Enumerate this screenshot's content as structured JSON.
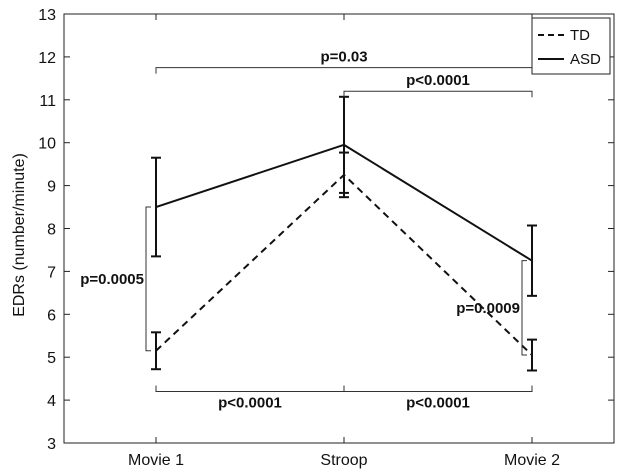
{
  "chart_data": {
    "type": "line",
    "categories": [
      "Movie 1",
      "Stroop",
      "Movie 2"
    ],
    "ylabel": "EDRs (number/minute)",
    "ylim": [
      3,
      13
    ],
    "yticks": [
      3,
      4,
      5,
      6,
      7,
      8,
      9,
      10,
      11,
      12,
      13
    ],
    "grid": false,
    "legend_position": "top-right",
    "series": [
      {
        "name": "TD",
        "style": "dashed",
        "color": "#111111",
        "values": [
          5.15,
          9.25,
          5.05
        ],
        "error": [
          0.43,
          0.52,
          0.36
        ]
      },
      {
        "name": "ASD",
        "style": "solid",
        "color": "#111111",
        "values": [
          8.5,
          9.95,
          7.25
        ],
        "error": [
          1.15,
          1.12,
          0.82
        ]
      }
    ],
    "annotations": [
      {
        "label": "p=0.03",
        "from": "Movie 1",
        "to": "Movie 2",
        "level": 11.75,
        "tick_dir": "down"
      },
      {
        "label": "p<0.0001",
        "from": "Stroop",
        "to": "Movie 2",
        "level": 11.2,
        "tick_dir": "down"
      },
      {
        "label": "p<0.0001",
        "from": "Movie 1",
        "to": "Stroop",
        "level": 4.2,
        "tick_dir": "up"
      },
      {
        "label": "p<0.0001",
        "from": "Stroop",
        "to": "Movie 2",
        "level": 4.2,
        "tick_dir": "up"
      },
      {
        "label": "p=0.0005",
        "at": "Movie 1",
        "from_y": 5.15,
        "to_y": 8.5,
        "side": "left"
      },
      {
        "label": "p=0.0009",
        "at": "Movie 2",
        "from_y": 5.05,
        "to_y": 7.25,
        "side": "left"
      }
    ]
  }
}
